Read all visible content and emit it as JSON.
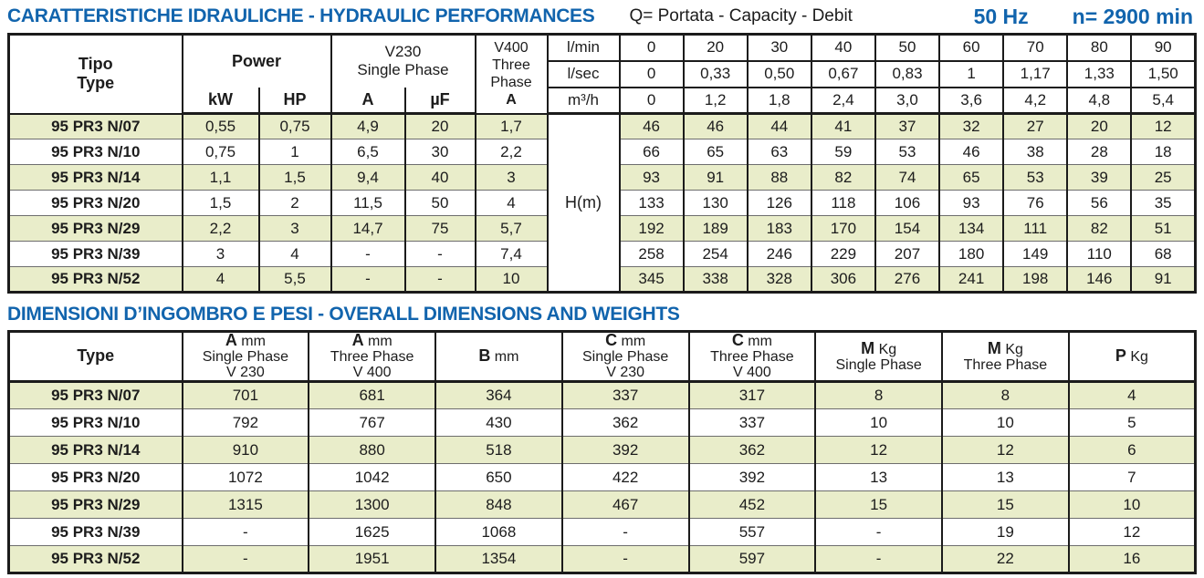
{
  "colors": {
    "title_blue": "#1164ad",
    "stripe_green": "#e9edca",
    "border_dark": "#1b1b1b",
    "background": "#ffffff"
  },
  "hydraulic": {
    "title": "CARATTERISTICHE IDRAULICHE - HYDRAULIC PERFORMANCES",
    "flow_legend": "Q= Portata - Capacity - Debit",
    "frequency": "50 Hz",
    "speed": "n= 2900 min",
    "type_header": [
      "Tipo",
      "Type"
    ],
    "power_group": "Power",
    "power_cols": [
      "kW",
      "HP"
    ],
    "v230_group": [
      "V230",
      "Single Phase"
    ],
    "v230_cols": [
      "A",
      "µF"
    ],
    "v400_group": [
      "V400",
      "Three",
      "Phase"
    ],
    "v400_col": "A",
    "head_label": "H(m)",
    "flow_rows": [
      {
        "label": "l/min",
        "values": [
          "0",
          "20",
          "30",
          "40",
          "50",
          "60",
          "70",
          "80",
          "90"
        ]
      },
      {
        "label": "l/sec",
        "values": [
          "0",
          "0,33",
          "0,50",
          "0,67",
          "0,83",
          "1",
          "1,17",
          "1,33",
          "1,50"
        ]
      },
      {
        "label": "m³/h",
        "values": [
          "0",
          "1,2",
          "1,8",
          "2,4",
          "3,0",
          "3,6",
          "4,2",
          "4,8",
          "5,4"
        ]
      }
    ],
    "rows": [
      {
        "type": "95 PR3 N/07",
        "kw": "0,55",
        "hp": "0,75",
        "a": "4,9",
        "uf": "20",
        "a400": "1,7",
        "h": [
          "46",
          "46",
          "44",
          "41",
          "37",
          "32",
          "27",
          "20",
          "12"
        ]
      },
      {
        "type": "95 PR3 N/10",
        "kw": "0,75",
        "hp": "1",
        "a": "6,5",
        "uf": "30",
        "a400": "2,2",
        "h": [
          "66",
          "65",
          "63",
          "59",
          "53",
          "46",
          "38",
          "28",
          "18"
        ]
      },
      {
        "type": "95 PR3 N/14",
        "kw": "1,1",
        "hp": "1,5",
        "a": "9,4",
        "uf": "40",
        "a400": "3",
        "h": [
          "93",
          "91",
          "88",
          "82",
          "74",
          "65",
          "53",
          "39",
          "25"
        ]
      },
      {
        "type": "95 PR3 N/20",
        "kw": "1,5",
        "hp": "2",
        "a": "11,5",
        "uf": "50",
        "a400": "4",
        "h": [
          "133",
          "130",
          "126",
          "118",
          "106",
          "93",
          "76",
          "56",
          "35"
        ]
      },
      {
        "type": "95 PR3 N/29",
        "kw": "2,2",
        "hp": "3",
        "a": "14,7",
        "uf": "75",
        "a400": "5,7",
        "h": [
          "192",
          "189",
          "183",
          "170",
          "154",
          "134",
          "111",
          "82",
          "51"
        ]
      },
      {
        "type": "95 PR3 N/39",
        "kw": "3",
        "hp": "4",
        "a": "-",
        "uf": "-",
        "a400": "7,4",
        "h": [
          "258",
          "254",
          "246",
          "229",
          "207",
          "180",
          "149",
          "110",
          "68"
        ]
      },
      {
        "type": "95 PR3 N/52",
        "kw": "4",
        "hp": "5,5",
        "a": "-",
        "uf": "-",
        "a400": "10",
        "h": [
          "345",
          "338",
          "328",
          "306",
          "276",
          "241",
          "198",
          "146",
          "91"
        ]
      }
    ]
  },
  "dimensions": {
    "title": "DIMENSIONI D’INGOMBRO E PESI - OVERALL DIMENSIONS AND WEIGHTS",
    "headers": [
      {
        "letter": "Type"
      },
      {
        "letter": "A",
        "unit": "mm",
        "line2": "Single Phase",
        "line3": "V 230"
      },
      {
        "letter": "A",
        "unit": "mm",
        "line2": "Three Phase",
        "line3": "V 400"
      },
      {
        "letter": "B",
        "unit": "mm"
      },
      {
        "letter": "C",
        "unit": "mm",
        "line2": "Single Phase",
        "line3": "V 230"
      },
      {
        "letter": "C",
        "unit": "mm",
        "line2": "Three Phase",
        "line3": "V 400"
      },
      {
        "letter": "M",
        "unit": "Kg",
        "line2": "Single Phase"
      },
      {
        "letter": "M",
        "unit": "Kg",
        "line2": "Three Phase"
      },
      {
        "letter": "P",
        "unit": "Kg"
      }
    ],
    "rows": [
      {
        "type": "95 PR3 N/07",
        "values": [
          "701",
          "681",
          "364",
          "337",
          "317",
          "8",
          "8",
          "4"
        ]
      },
      {
        "type": "95 PR3 N/10",
        "values": [
          "792",
          "767",
          "430",
          "362",
          "337",
          "10",
          "10",
          "5"
        ]
      },
      {
        "type": "95 PR3 N/14",
        "values": [
          "910",
          "880",
          "518",
          "392",
          "362",
          "12",
          "12",
          "6"
        ]
      },
      {
        "type": "95 PR3 N/20",
        "values": [
          "1072",
          "1042",
          "650",
          "422",
          "392",
          "13",
          "13",
          "7"
        ]
      },
      {
        "type": "95 PR3 N/29",
        "values": [
          "1315",
          "1300",
          "848",
          "467",
          "452",
          "15",
          "15",
          "10"
        ]
      },
      {
        "type": "95 PR3 N/39",
        "values": [
          "-",
          "1625",
          "1068",
          "-",
          "557",
          "-",
          "19",
          "12"
        ]
      },
      {
        "type": "95 PR3 N/52",
        "values": [
          "-",
          "1951",
          "1354",
          "-",
          "597",
          "-",
          "22",
          "16"
        ]
      }
    ]
  }
}
